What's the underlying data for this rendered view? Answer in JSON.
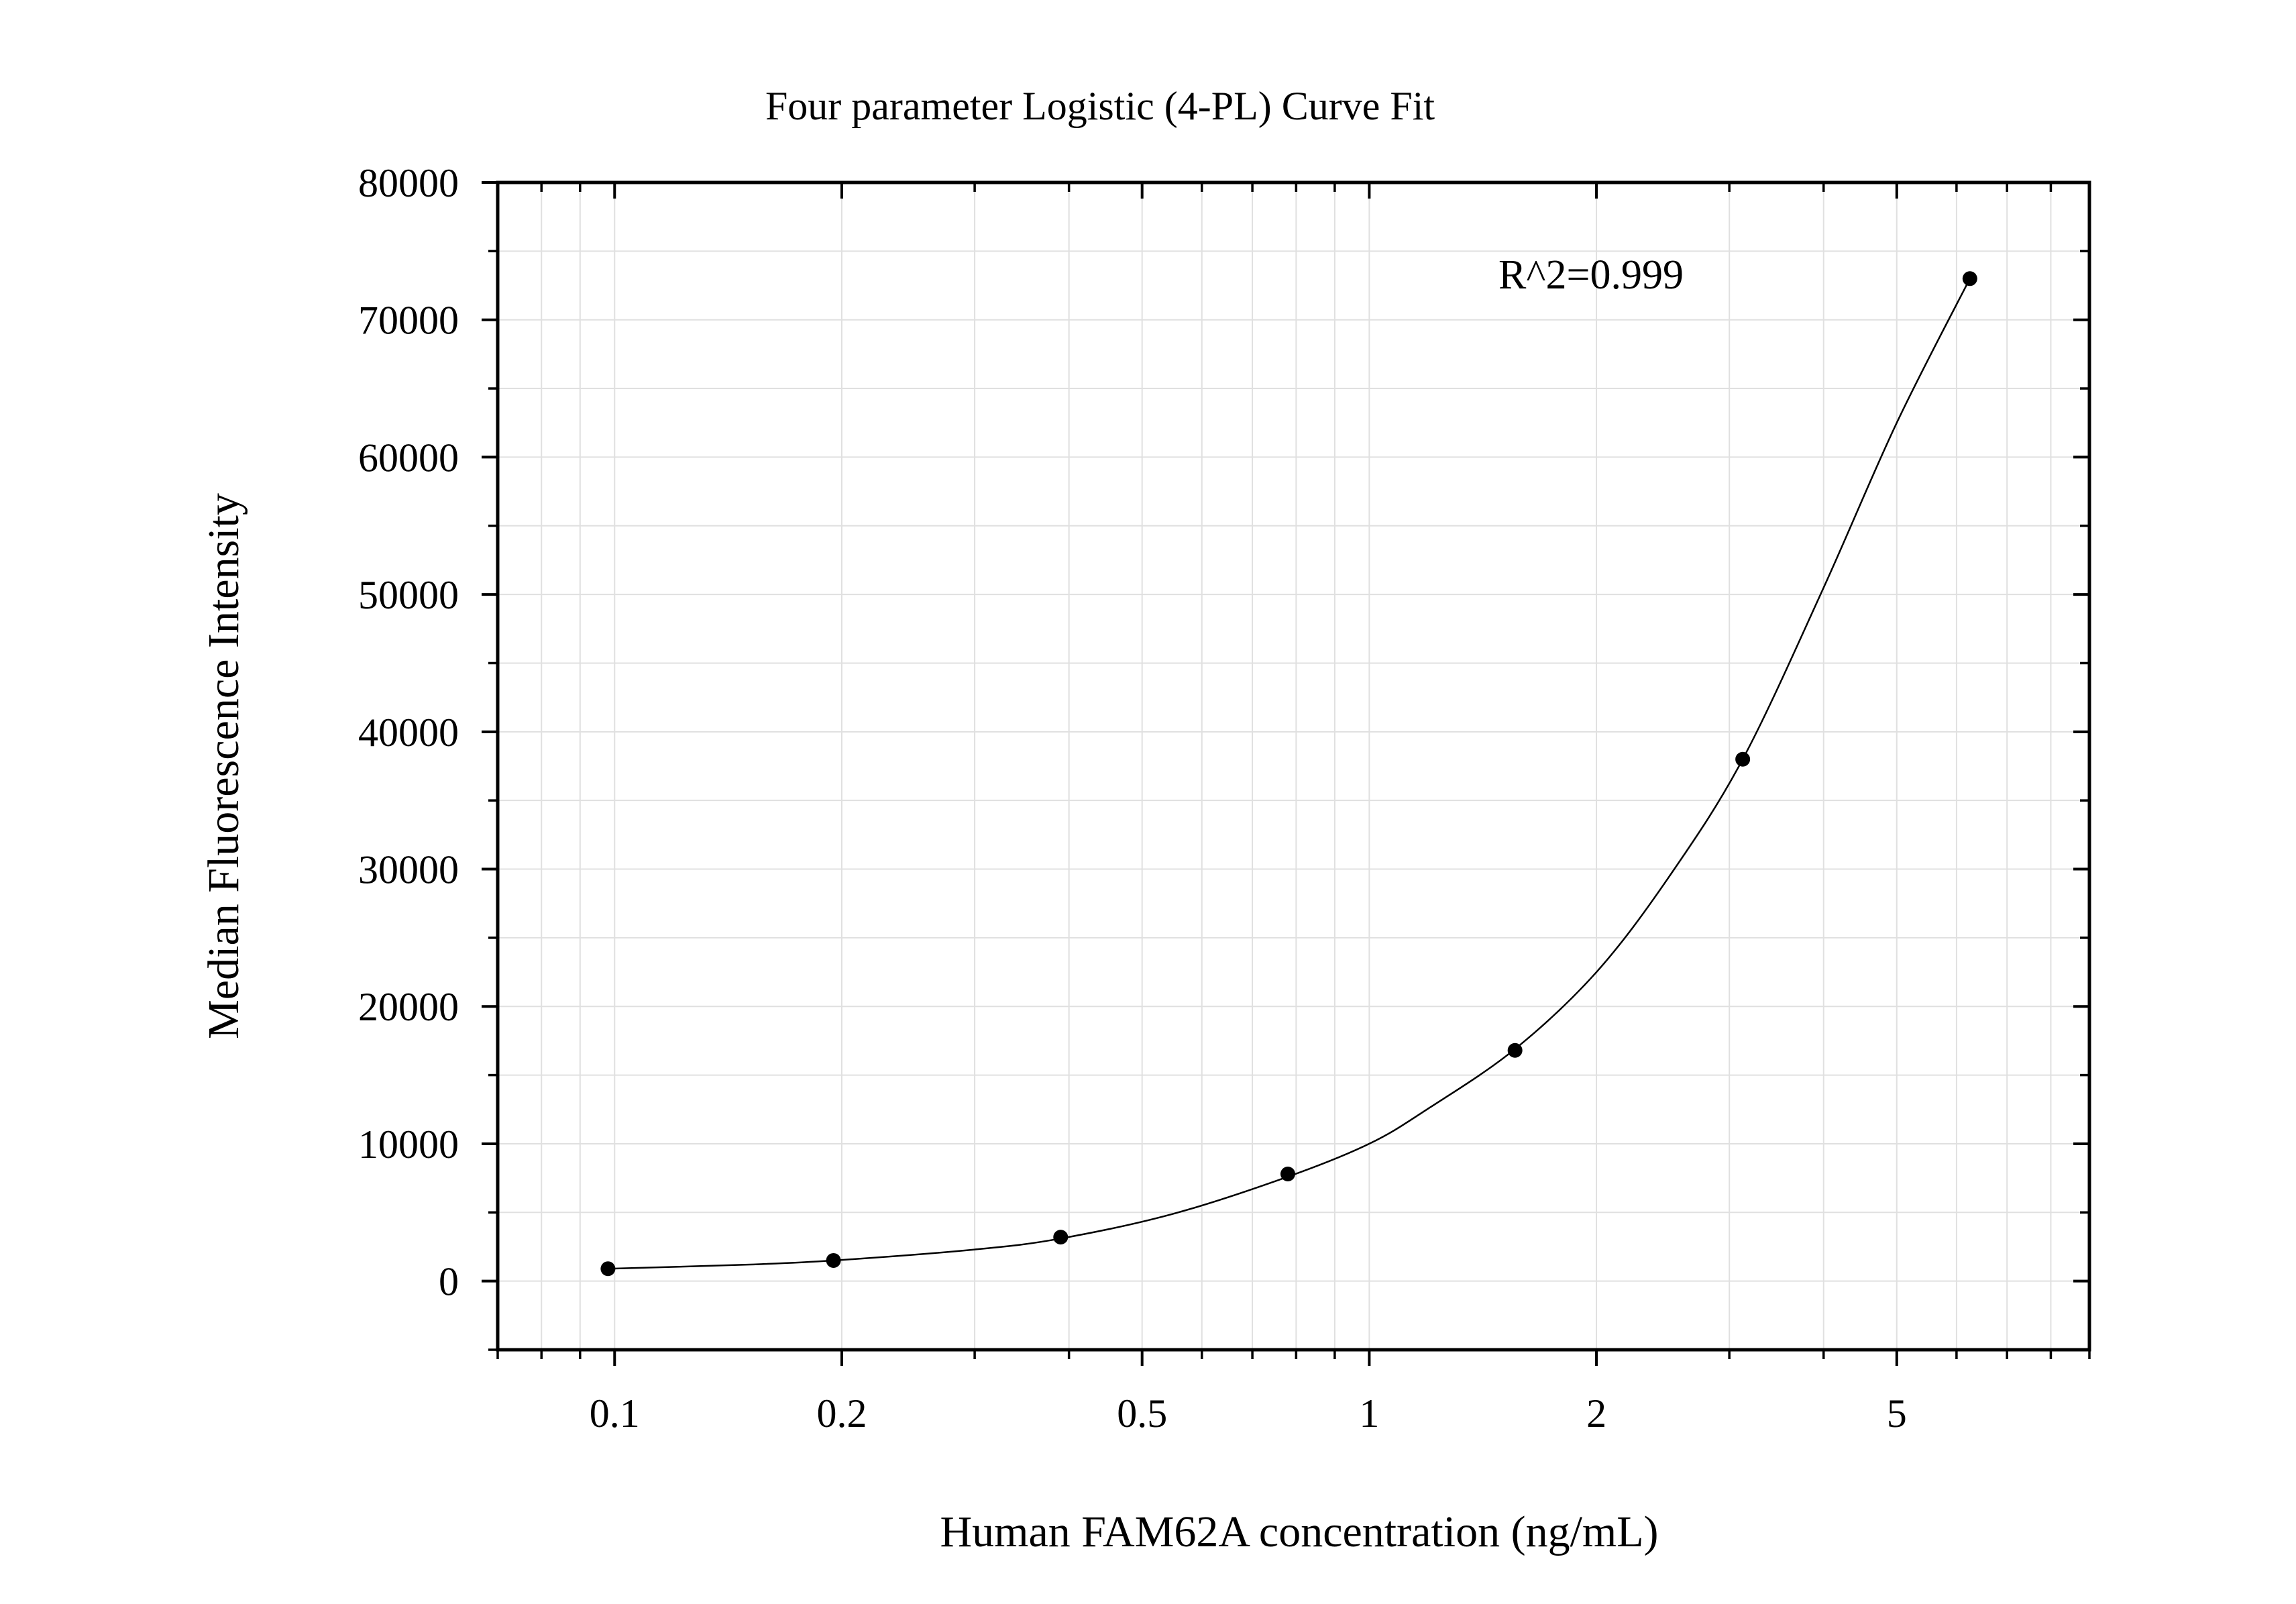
{
  "chart_data": {
    "type": "scatter",
    "title": "Four parameter Logistic (4-PL) Curve Fit",
    "xlabel": "Human FAM62A concentration (ng/mL)",
    "ylabel": "Median Fluorescence Intensity",
    "x_scale": "log",
    "xlim": [
      0.07,
      9.0
    ],
    "ylim": [
      -5000,
      80000
    ],
    "x_ticks": [
      0.1,
      0.2,
      0.5,
      1,
      2,
      5
    ],
    "x_tick_labels": [
      "0.1",
      "0.2",
      "0.5",
      "1",
      "2",
      "5"
    ],
    "y_ticks": [
      0,
      10000,
      20000,
      30000,
      40000,
      50000,
      60000,
      70000,
      80000
    ],
    "y_tick_labels": [
      "0",
      "10000",
      "20000",
      "30000",
      "40000",
      "50000",
      "60000",
      "70000",
      "80000"
    ],
    "grid": true,
    "annotation": "R^2=0.999",
    "series": [
      {
        "kind": "points",
        "x": [
          0.098,
          0.195,
          0.39,
          0.78,
          1.56,
          3.125,
          6.25
        ],
        "y": [
          900,
          1500,
          3200,
          7800,
          16800,
          38000,
          73000
        ]
      },
      {
        "kind": "fit-curve",
        "x": [
          0.098,
          0.15,
          0.195,
          0.3,
          0.39,
          0.55,
          0.78,
          1.0,
          1.2,
          1.56,
          2.0,
          2.5,
          3.125,
          4.0,
          5.0,
          6.25
        ],
        "y": [
          900,
          1200,
          1500,
          2300,
          3100,
          4900,
          7600,
          10000,
          12600,
          16900,
          22500,
          29500,
          38000,
          50500,
          62500,
          73000
        ]
      }
    ],
    "colors": {
      "points": "#000000",
      "curve": "#000000",
      "grid": "#e0e0e0",
      "axes": "#000000"
    }
  }
}
